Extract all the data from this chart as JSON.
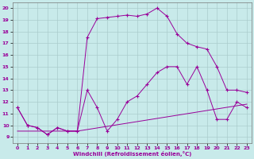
{
  "xlabel": "Windchill (Refroidissement éolien,°C)",
  "bg_color": "#c8eaea",
  "line_color": "#990099",
  "grid_color": "#aacccc",
  "xlim": [
    -0.5,
    23.5
  ],
  "ylim": [
    8.5,
    20.5
  ],
  "xticks": [
    0,
    1,
    2,
    3,
    4,
    5,
    6,
    7,
    8,
    9,
    10,
    11,
    12,
    13,
    14,
    15,
    16,
    17,
    18,
    19,
    20,
    21,
    22,
    23
  ],
  "yticks": [
    9,
    10,
    11,
    12,
    13,
    14,
    15,
    16,
    17,
    18,
    19,
    20
  ],
  "line1_x": [
    0,
    1,
    2,
    3,
    4,
    5,
    6,
    7,
    8,
    9,
    10,
    11,
    12,
    13,
    14,
    15,
    16,
    17,
    18,
    19,
    20,
    21,
    22,
    23
  ],
  "line1_y": [
    11.5,
    10.0,
    9.8,
    9.2,
    9.8,
    9.5,
    9.5,
    17.5,
    19.1,
    19.2,
    19.3,
    19.4,
    19.3,
    19.5,
    20.0,
    19.3,
    17.8,
    17.0,
    16.7,
    16.5,
    15.0,
    13.0,
    13.0,
    12.8
  ],
  "line2_x": [
    0,
    1,
    2,
    3,
    4,
    5,
    6,
    7,
    8,
    9,
    10,
    11,
    12,
    13,
    14,
    15,
    16,
    17,
    18,
    19,
    20,
    21,
    22,
    23
  ],
  "line2_y": [
    11.5,
    10.0,
    9.8,
    9.2,
    9.8,
    9.5,
    9.5,
    13.0,
    11.5,
    9.5,
    10.5,
    12.0,
    12.5,
    13.5,
    14.5,
    15.0,
    15.0,
    13.5,
    15.0,
    13.0,
    10.5,
    10.5,
    12.0,
    11.5
  ],
  "line3_x": [
    0,
    6,
    23
  ],
  "line3_y": [
    9.5,
    9.5,
    11.8
  ],
  "figsize": [
    3.2,
    2.0
  ],
  "dpi": 100
}
